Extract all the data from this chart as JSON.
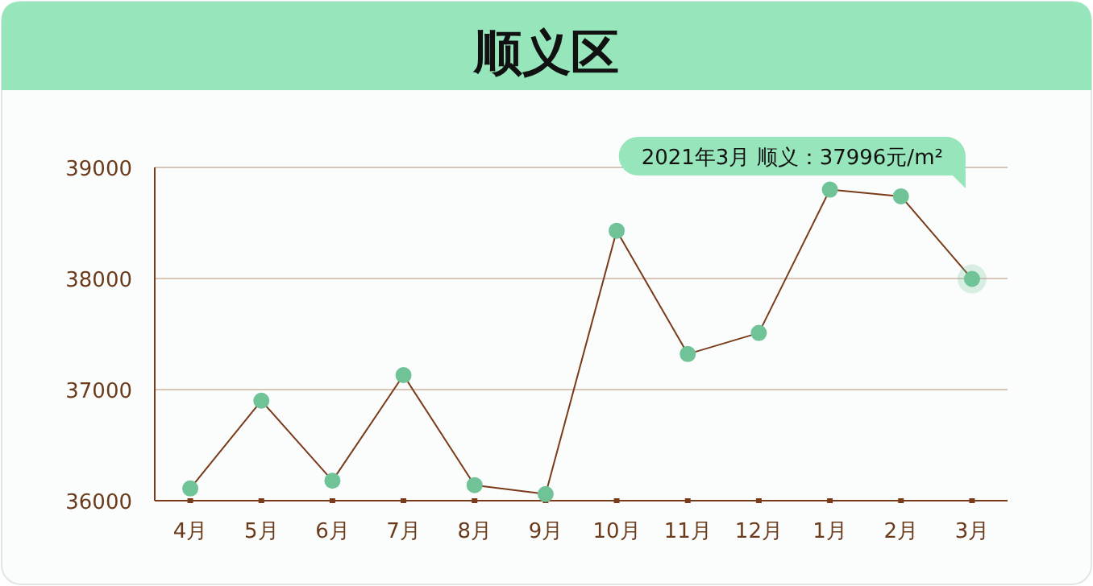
{
  "chart_data": {
    "type": "line",
    "title": "顺义区",
    "categories": [
      "4月",
      "5月",
      "6月",
      "7月",
      "8月",
      "9月",
      "10月",
      "11月",
      "12月",
      "1月",
      "2月",
      "3月"
    ],
    "values": [
      36110,
      36900,
      36180,
      37130,
      36140,
      36060,
      38430,
      37320,
      37510,
      38800,
      38740,
      37996
    ],
    "color": "#6fc396",
    "marker": "circle",
    "line_style": "solid",
    "ylim": [
      36000,
      39000
    ],
    "yticks": [
      36000,
      37000,
      38000,
      39000
    ],
    "grid": "y",
    "annotations": [
      "2021年3月 顺义：37996元/m²"
    ]
  }
}
